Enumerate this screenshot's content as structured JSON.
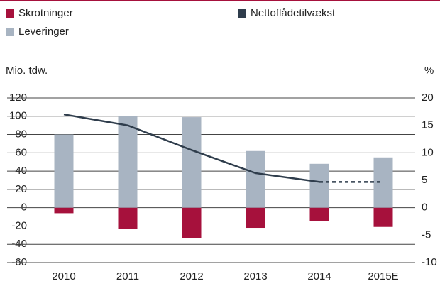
{
  "chart_data": {
    "type": "bar_line",
    "y_label": "Mio. tdw.",
    "y2_label": "%",
    "categories": [
      "2010",
      "2011",
      "2012",
      "2013",
      "2014",
      "2015E"
    ],
    "series": [
      {
        "name": "Skrotninger",
        "color": "#a6113c",
        "values": [
          -6,
          -23,
          -33,
          -22,
          -15,
          -21
        ]
      },
      {
        "name": "Leveringer",
        "color": "#a8b4c2",
        "values": [
          80,
          100,
          99,
          62,
          48,
          55
        ]
      },
      {
        "name": "Nettoflådetilvækst",
        "color": "#2f3d4c",
        "axis": "y2",
        "line": true,
        "dashed_from_index": 4,
        "values": [
          17,
          15,
          10.5,
          6.3,
          4.7,
          4.7
        ]
      }
    ],
    "ylim": [
      -60,
      120
    ],
    "yticks": [
      -60,
      -40,
      -20,
      0,
      20,
      40,
      60,
      80,
      100,
      120
    ],
    "y2lim": [
      -10,
      20
    ],
    "y2ticks": [
      -10,
      -5,
      0,
      5,
      10,
      15,
      20
    ],
    "grid": true
  }
}
